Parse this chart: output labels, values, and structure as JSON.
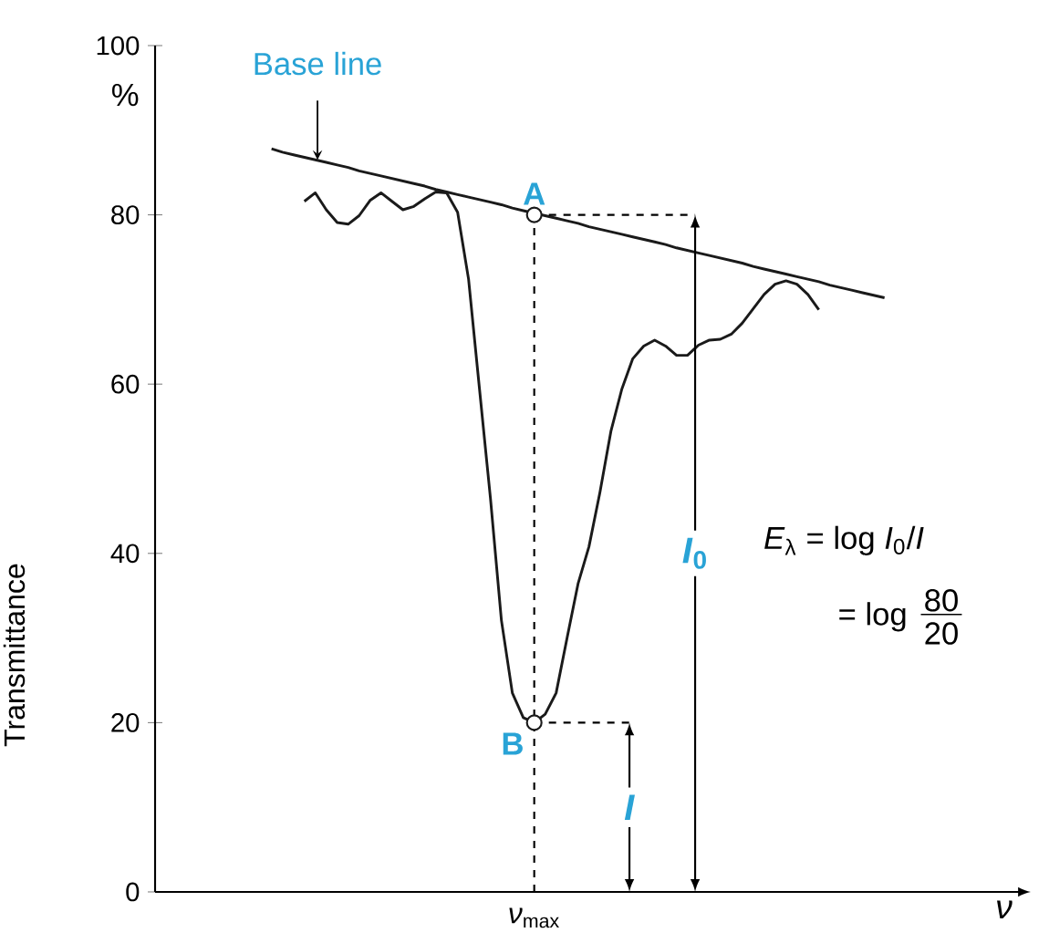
{
  "chart_data": {
    "type": "line",
    "ylabel": "Transmittance",
    "xlabel": "*ν*",
    "ylim": [
      0,
      100
    ],
    "yticks": [
      0,
      20,
      40,
      60,
      80,
      100
    ],
    "grid": false,
    "line_style": "solid",
    "categories": [
      null,
      null,
      null,
      null,
      null,
      null,
      null,
      null,
      null,
      null,
      null,
      null,
      null,
      null,
      null,
      null,
      null,
      null,
      null,
      null,
      null,
      null,
      null,
      null,
      null,
      null,
      null,
      null,
      null,
      null,
      null,
      null,
      null,
      null,
      null,
      null,
      null,
      null,
      null,
      null,
      null,
      null,
      null,
      null,
      null,
      null,
      null,
      null,
      null,
      null,
      null,
      null,
      null,
      null,
      null,
      null,
      null
    ],
    "series": [
      {
        "color": "#1a1a1a",
        "values": [
          null,
          null,
          null,
          81.6,
          82.6,
          80.6,
          79.1,
          78.9,
          79.9,
          81.7,
          82.6,
          81.6,
          80.6,
          81.0,
          81.9,
          82.7,
          82.6,
          80.3,
          72.4,
          59.4,
          46.5,
          32.1,
          23.5,
          20.6,
          20.0,
          21.0,
          23.5,
          30.0,
          36.4,
          40.8,
          47.2,
          54.4,
          59.4,
          63.0,
          64.5,
          65.2,
          64.5,
          63.4,
          63.4,
          64.6,
          65.2,
          65.3,
          65.9,
          67.2,
          68.9,
          70.6,
          71.8,
          72.2,
          71.8,
          70.6,
          68.8,
          null,
          null,
          null,
          null,
          null,
          null
        ]
      },
      {
        "color": "#1a1a1a",
        "values": [
          87.8,
          87.4,
          87.1,
          86.8,
          86.5,
          86.2,
          85.9,
          85.6,
          85.2,
          84.9,
          84.6,
          84.3,
          84.0,
          83.7,
          83.4,
          83.0,
          82.7,
          82.4,
          82.1,
          81.8,
          81.5,
          81.2,
          80.8,
          80.5,
          80.2,
          79.9,
          79.6,
          79.3,
          79.0,
          78.6,
          78.3,
          78.0,
          77.7,
          77.4,
          77.1,
          76.8,
          76.5,
          76.1,
          75.8,
          75.5,
          75.2,
          74.9,
          74.6,
          74.3,
          73.9,
          73.6,
          73.3,
          73.0,
          72.7,
          72.4,
          72.1,
          71.7,
          71.4,
          71.1,
          70.8,
          70.5,
          70.2
        ]
      },
      {
        "type": "scatter",
        "color": "#1a1a1a",
        "marker": "circle",
        "values": [
          null,
          null,
          null,
          null,
          null,
          null,
          null,
          null,
          null,
          null,
          null,
          null,
          null,
          null,
          null,
          null,
          null,
          null,
          null,
          null,
          null,
          null,
          null,
          null,
          80,
          null,
          null,
          null,
          null,
          null,
          null,
          null,
          null,
          null,
          null,
          null,
          null,
          null,
          null,
          null,
          null,
          null,
          null,
          null,
          null,
          null,
          null,
          null,
          null,
          null,
          null,
          null,
          null,
          null,
          null,
          null,
          null
        ],
        "value_labels": [
          null,
          null,
          null,
          null,
          null,
          null,
          null,
          null,
          null,
          null,
          null,
          null,
          null,
          null,
          null,
          null,
          null,
          null,
          null,
          null,
          null,
          null,
          null,
          null,
          "A",
          null,
          null,
          null,
          null,
          null,
          null,
          null,
          null,
          null,
          null,
          null,
          null,
          null,
          null,
          null,
          null,
          null,
          null,
          null,
          null,
          null,
          null,
          null,
          null,
          null,
          null,
          null,
          null,
          null,
          null,
          null,
          null
        ]
      },
      {
        "type": "scatter",
        "color": "#1a1a1a",
        "marker": "circle",
        "values": [
          null,
          null,
          null,
          null,
          null,
          null,
          null,
          null,
          null,
          null,
          null,
          null,
          null,
          null,
          null,
          null,
          null,
          null,
          null,
          null,
          null,
          null,
          null,
          null,
          20,
          null,
          null,
          null,
          null,
          null,
          null,
          null,
          null,
          null,
          null,
          null,
          null,
          null,
          null,
          null,
          null,
          null,
          null,
          null,
          null,
          null,
          null,
          null,
          null,
          null,
          null,
          null,
          null,
          null,
          null,
          null,
          null
        ],
        "value_labels": [
          null,
          null,
          null,
          null,
          null,
          null,
          null,
          null,
          null,
          null,
          null,
          null,
          null,
          null,
          null,
          null,
          null,
          null,
          null,
          null,
          null,
          null,
          null,
          null,
          "B",
          null,
          null,
          null,
          null,
          null,
          null,
          null,
          null,
          null,
          null,
          null,
          null,
          null,
          null,
          null,
          null,
          null,
          null,
          null,
          null,
          null,
          null,
          null,
          null,
          null,
          null,
          null,
          null,
          null,
          null,
          null,
          null
        ]
      }
    ],
    "annotations": [
      {
        "text": "Base line",
        "y": 86.5
      },
      "%",
      "*I*$_{0}$",
      "*I*",
      "*ν*$_{max}$",
      "*E*$_{λ}$ = log *I*$_{0}$/*I*",
      "= log",
      "80",
      "20"
    ]
  }
}
